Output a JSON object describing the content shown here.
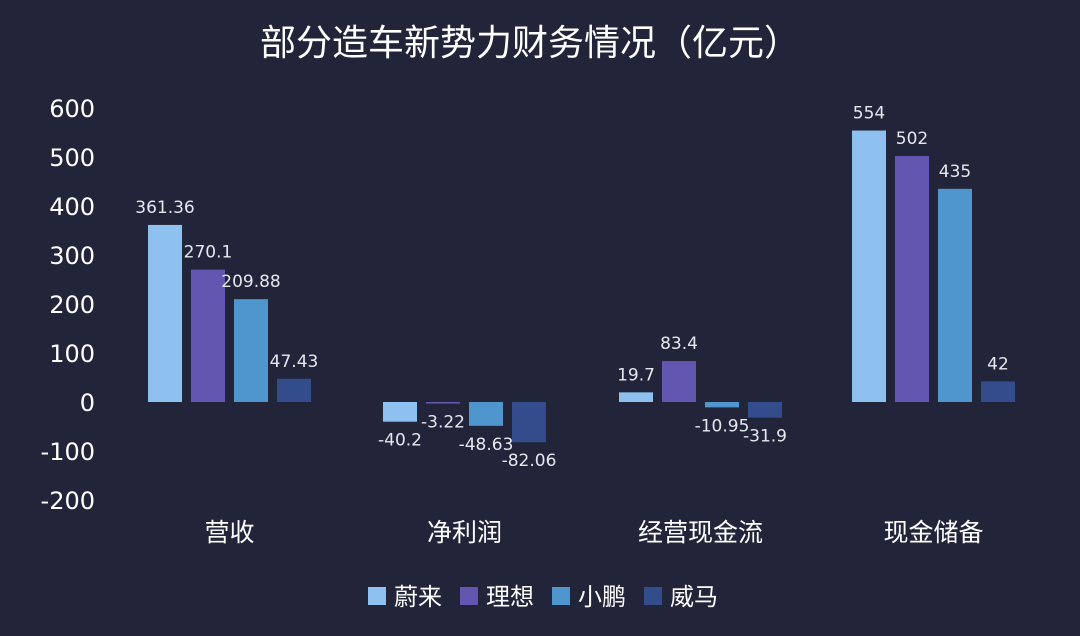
{
  "chart_data": {
    "type": "bar",
    "title": "部分造车新势力财务情况（亿元）",
    "categories": [
      "营收",
      "净利润",
      "经营现金流",
      "现金储备"
    ],
    "series": [
      {
        "name": "蔚来",
        "color": "#8ec1ef",
        "values": [
          361.36,
          -40.2,
          19.7,
          554
        ]
      },
      {
        "name": "理想",
        "color": "#6356b0",
        "values": [
          270.1,
          -3.22,
          83.4,
          502
        ]
      },
      {
        "name": "小鹏",
        "color": "#4f96cf",
        "values": [
          209.88,
          -48.63,
          -10.95,
          435
        ]
      },
      {
        "name": "威马",
        "color": "#334d8c",
        "values": [
          47.43,
          -82.06,
          -31.9,
          42
        ]
      }
    ],
    "data_labels": [
      [
        "361.36",
        "-40.2",
        "19.7",
        "554"
      ],
      [
        "270.1",
        "-3.22",
        "83.4",
        "502"
      ],
      [
        "209.88",
        "-48.63",
        "-10.95",
        "435"
      ],
      [
        "47.43",
        "-82.06",
        "-31.9",
        "42"
      ]
    ],
    "yticks": [
      600,
      500,
      400,
      300,
      200,
      100,
      0,
      -100,
      -200
    ],
    "ylim": [
      -200,
      600
    ],
    "grid": false,
    "legend_position": "bottom-center",
    "background": "#22253a"
  }
}
